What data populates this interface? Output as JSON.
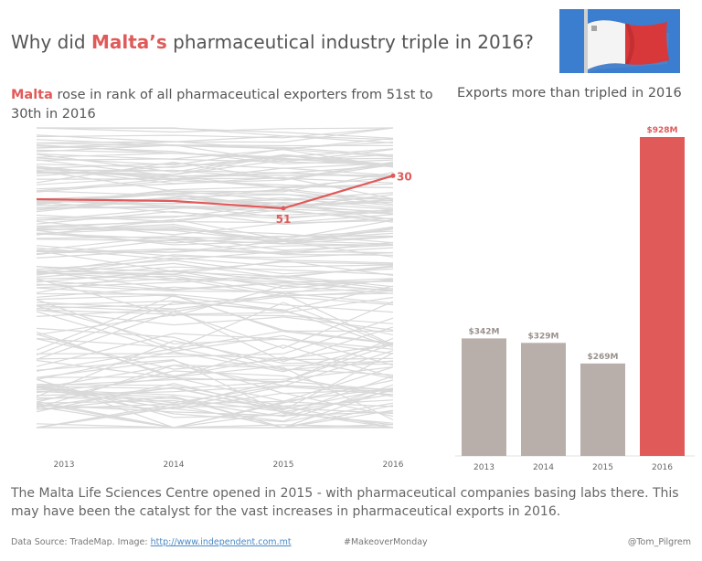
{
  "title": {
    "pre": "Why did ",
    "highlight": "Malta’s",
    "post": " pharmaceutical industry triple in 2016?"
  },
  "rank_subtitle": {
    "highlight": "Malta",
    "text": " rose in rank of all pharmaceutical exporters from 51st to 30th in 2016"
  },
  "exports_subtitle": "Exports more than tripled in 2016",
  "colors": {
    "accent": "#e05a5a",
    "grey_bar": "#b8afab",
    "background_line": "#d9d9d9",
    "text": "#555555"
  },
  "chart_data": [
    {
      "type": "line",
      "description_note": "",
      "x": [
        "2013",
        "2014",
        "2015",
        "2016"
      ],
      "series": [
        {
          "name": "Malta",
          "values": [
            null,
            null,
            51,
            30
          ],
          "labels": [
            "",
            "",
            "51",
            "30"
          ]
        }
      ],
      "y_reversed": true,
      "grid": false
    },
    {
      "type": "bar",
      "categories": [
        "2013",
        "2014",
        "2015",
        "2016"
      ],
      "values": [
        342,
        329,
        269,
        928
      ],
      "value_labels": [
        "$342M",
        "$329M",
        "$269M",
        "$928M"
      ],
      "highlight_index": 3,
      "ylim": [
        0,
        928
      ],
      "grid": false
    }
  ],
  "footnote": "The Malta Life Sciences Centre opened in 2015 - with pharmaceutical companies basing labs there. This may have been the catalyst for the vast increases in pharmaceutical exports in 2016.",
  "credits": {
    "source_prefix": "Data Source: TradeMap. Image: ",
    "source_link": "http://www.independent.com.mt",
    "hashtag": "#MakeoverMonday",
    "author": "@Tom_Pilgrem"
  }
}
